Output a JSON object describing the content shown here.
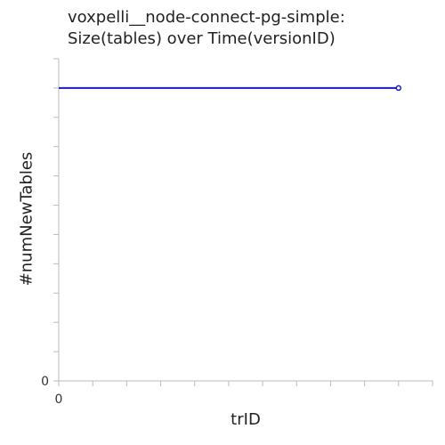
{
  "chart_data": {
    "type": "line",
    "title": "voxpelli__node-connect-pg-simple:\nSize(tables) over Time(versionID)",
    "title_lines": [
      "voxpelli__node-connect-pg-simple:",
      "Size(tables) over Time(versionID)"
    ],
    "xlabel": "trID",
    "ylabel": "#numNewTables",
    "x_tick_labels": [
      "0"
    ],
    "y_tick_labels": [
      "0"
    ],
    "xlim": [
      0,
      11
    ],
    "ylim": [
      0,
      11
    ],
    "grid": false,
    "legend": "none",
    "series": [
      {
        "color": "#1a1acc",
        "points": [
          {
            "x": 0,
            "y": 10,
            "marker": false
          },
          {
            "x": 10,
            "y": 10,
            "marker": true
          }
        ]
      }
    ]
  }
}
